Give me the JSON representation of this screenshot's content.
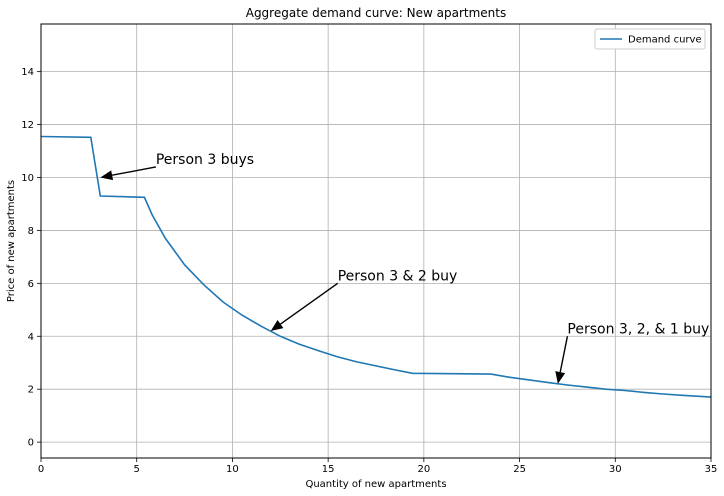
{
  "chart_data": {
    "type": "line",
    "title": "Aggregate demand curve: New apartments",
    "xlabel": "Quantity of new apartments",
    "ylabel": "Price of new apartments",
    "xlim": [
      0,
      35
    ],
    "ylim": [
      -0.6,
      15.8
    ],
    "xticks": [
      0,
      5,
      10,
      15,
      20,
      25,
      30,
      35
    ],
    "yticks": [
      0,
      2,
      4,
      6,
      8,
      10,
      12,
      14
    ],
    "grid": true,
    "legend": {
      "position": "top-right",
      "entries": [
        "Demand curve"
      ]
    },
    "color": "#1f77b4",
    "series": [
      {
        "name": "Demand curve",
        "points": [
          [
            0,
            11.55
          ],
          [
            2.6,
            11.52
          ],
          [
            3.1,
            9.3
          ],
          [
            5.4,
            9.25
          ],
          [
            5.8,
            8.6
          ],
          [
            6.5,
            7.7
          ],
          [
            7.5,
            6.7
          ],
          [
            8.5,
            5.95
          ],
          [
            9.5,
            5.3
          ],
          [
            10.5,
            4.8
          ],
          [
            11.5,
            4.38
          ],
          [
            12.5,
            4.0
          ],
          [
            13.5,
            3.7
          ],
          [
            14.5,
            3.45
          ],
          [
            15.5,
            3.22
          ],
          [
            16.5,
            3.03
          ],
          [
            17.5,
            2.88
          ],
          [
            18.5,
            2.73
          ],
          [
            19.4,
            2.6
          ],
          [
            23.5,
            2.57
          ],
          [
            24.5,
            2.45
          ],
          [
            25.5,
            2.35
          ],
          [
            26.5,
            2.25
          ],
          [
            27.5,
            2.16
          ],
          [
            28.5,
            2.08
          ],
          [
            29.5,
            2.0
          ],
          [
            30.5,
            1.95
          ],
          [
            31.5,
            1.88
          ],
          [
            32.5,
            1.82
          ],
          [
            33.5,
            1.77
          ],
          [
            35,
            1.7
          ]
        ]
      }
    ],
    "annotations": [
      {
        "text": "Person 3 buys",
        "xy": [
          3.1,
          10.0
        ],
        "xytext": [
          6.0,
          10.4
        ]
      },
      {
        "text": "Person 3 & 2 buy",
        "xy": [
          12.0,
          4.2
        ],
        "xytext": [
          15.5,
          6.0
        ]
      },
      {
        "text": "Person 3, 2, & 1 buy",
        "xy": [
          27.0,
          2.2
        ],
        "xytext": [
          27.5,
          4.0
        ]
      }
    ]
  }
}
